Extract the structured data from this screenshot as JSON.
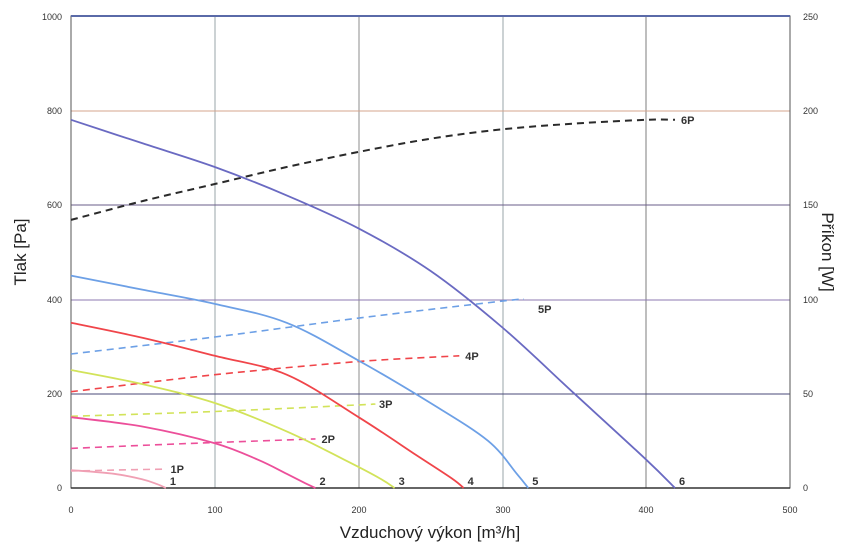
{
  "chart_data": {
    "type": "line",
    "title": "",
    "xlabel": "Vzduchový výkon [m³/h]",
    "ylabel_left": "Tlak [Pa]",
    "ylabel_right": "Příkon [W]",
    "xlim": [
      0,
      500
    ],
    "ylim_left": [
      0,
      1000
    ],
    "ylim_right": [
      0,
      250
    ],
    "x_ticks": [
      "0",
      "100",
      "200",
      "300",
      "400",
      "500"
    ],
    "y_left_ticks": [
      "0",
      "200",
      "400",
      "600",
      "800",
      "1000"
    ],
    "y_right_ticks": [
      "0",
      "50",
      "100",
      "150",
      "200",
      "250"
    ],
    "grid": true,
    "pressure_series": [
      {
        "name": "1",
        "color": "#f0a0b4",
        "x": [
          0,
          30,
          50,
          60,
          66
        ],
        "y": [
          38,
          30,
          18,
          8,
          0
        ]
      },
      {
        "name": "2",
        "color": "#ec4f9a",
        "x": [
          0,
          50,
          100,
          130,
          150,
          163,
          170
        ],
        "y": [
          150,
          130,
          95,
          60,
          30,
          10,
          0
        ]
      },
      {
        "name": "3",
        "color": "#d2e35a",
        "x": [
          0,
          50,
          100,
          150,
          190,
          215,
          225
        ],
        "y": [
          250,
          220,
          180,
          120,
          60,
          20,
          0
        ]
      },
      {
        "name": "4",
        "color": "#f0454a",
        "x": [
          0,
          50,
          100,
          150,
          200,
          240,
          265,
          273
        ],
        "y": [
          350,
          318,
          280,
          240,
          150,
          70,
          20,
          0
        ]
      },
      {
        "name": "5",
        "color": "#6da0e6",
        "x": [
          0,
          50,
          100,
          150,
          200,
          250,
          290,
          310,
          318
        ],
        "y": [
          450,
          420,
          390,
          350,
          270,
          180,
          100,
          30,
          0
        ]
      },
      {
        "name": "6",
        "color": "#6a6ac2",
        "x": [
          0,
          50,
          100,
          150,
          200,
          250,
          300,
          350,
          400,
          420
        ],
        "y": [
          780,
          730,
          680,
          620,
          550,
          460,
          340,
          200,
          60,
          0
        ]
      }
    ],
    "power_series": [
      {
        "name": "1P",
        "color": "#f0a0b4",
        "x": [
          0,
          30,
          65
        ],
        "y": [
          9,
          9.5,
          10
        ]
      },
      {
        "name": "2P",
        "color": "#ec4f9a",
        "x": [
          0,
          80,
          170
        ],
        "y": [
          21,
          23.5,
          26
        ]
      },
      {
        "name": "3P",
        "color": "#d2e35a",
        "x": [
          0,
          100,
          200,
          210
        ],
        "y": [
          38,
          40.5,
          44,
          44.5
        ]
      },
      {
        "name": "4P",
        "color": "#f0454a",
        "x": [
          0,
          100,
          200,
          270
        ],
        "y": [
          51,
          60,
          67,
          70
        ]
      },
      {
        "name": "5P",
        "color": "#6da0e6",
        "x": [
          0,
          100,
          200,
          300,
          315
        ],
        "y": [
          71,
          80,
          90,
          99,
          100
        ]
      },
      {
        "name": "6P",
        "color": "#2a2a2a",
        "x": [
          0,
          50,
          100,
          150,
          200,
          250,
          300,
          350,
          400,
          420
        ],
        "y": [
          142,
          152,
          161,
          170,
          178,
          185,
          190,
          193,
          195,
          195
        ]
      }
    ]
  }
}
